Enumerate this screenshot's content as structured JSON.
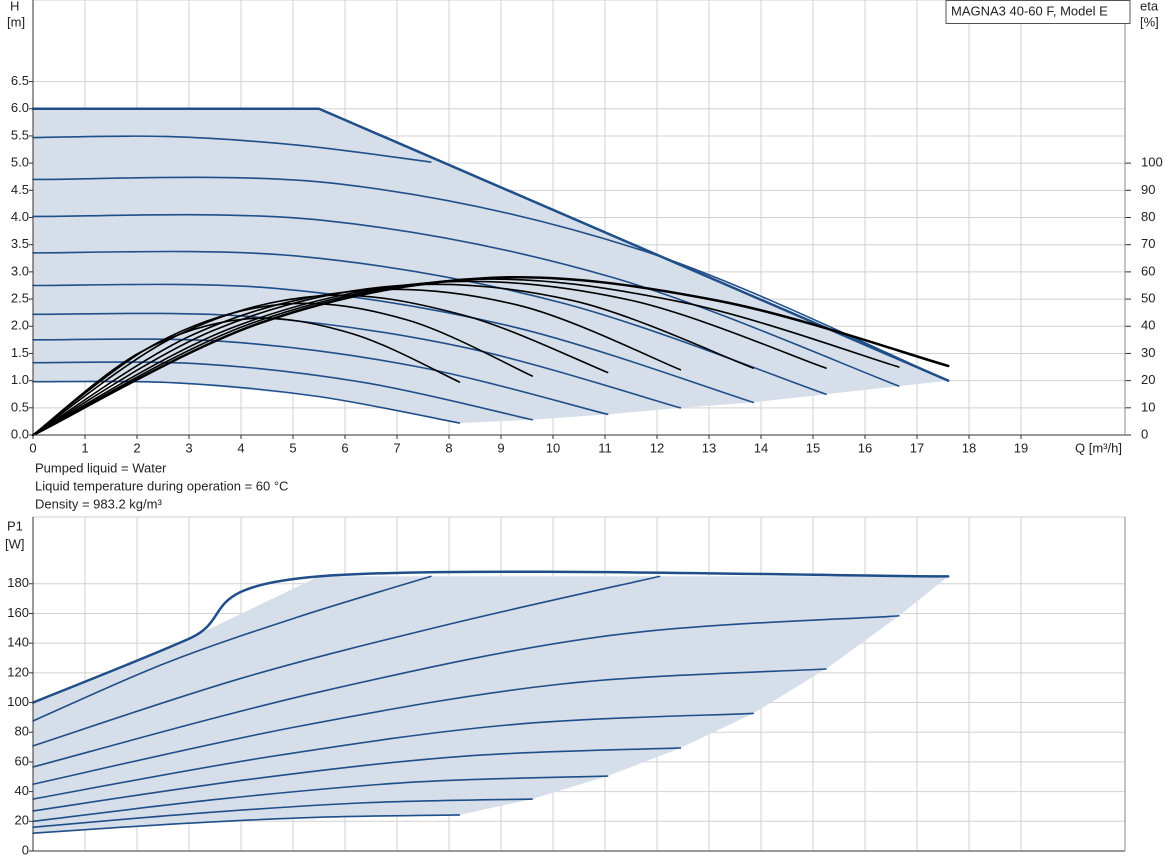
{
  "chart_data": [
    {
      "type": "line",
      "title": "MAGNA3 40-60 F, Model E",
      "ylabel": "H",
      "yunit": "[m]",
      "y2label": "eta",
      "y2unit": "[%]",
      "xlabel": "Q [m³/h]",
      "xlim": [
        0,
        21
      ],
      "xticks": [
        0,
        1,
        2,
        3,
        4,
        5,
        6,
        7,
        8,
        9,
        10,
        11,
        12,
        13,
        14,
        15,
        16,
        17,
        18,
        19
      ],
      "ylim": [
        0,
        8
      ],
      "yticks": [
        {
          "value": 0,
          "label": "0.0"
        },
        0.5,
        {
          "value": 1,
          "label": "1.0"
        },
        1.5,
        {
          "value": 2,
          "label": "2.0"
        },
        2.5,
        {
          "value": 3,
          "label": "3.0"
        },
        3.5,
        {
          "value": 4,
          "label": "4.0"
        },
        4.5,
        {
          "value": 5,
          "label": "5.0"
        },
        5.5,
        {
          "value": 6,
          "label": "6.0"
        },
        6.5
      ],
      "y2lim": [
        0,
        160
      ],
      "y2ticks": [
        0,
        10,
        20,
        30,
        40,
        50,
        60,
        70,
        80,
        90,
        100
      ],
      "grid": true,
      "area_color": "#d5dee9",
      "series": [
        {
          "color": "#1f4e89",
          "line_width": 2.5,
          "x": [
            0,
            5.5,
            17.6
          ],
          "values": [
            6.0,
            6.0,
            1.0
          ]
        },
        {
          "color": "#1f4e89",
          "x": [
            0,
            2.55,
            5.1,
            7.65
          ],
          "values": [
            5.47,
            5.49,
            5.33,
            5.02
          ]
        },
        {
          "color": "#1f4e89",
          "x": [
            0,
            5.87,
            11.73,
            17.6
          ],
          "values": [
            4.7,
            4.62,
            3.39,
            1.0
          ]
        },
        {
          "color": "#1f4e89",
          "x": [
            0,
            5.55,
            11.1,
            16.65
          ],
          "values": [
            4.02,
            3.95,
            2.91,
            0.9
          ]
        },
        {
          "color": "#1f4e89",
          "x": [
            0,
            5.08,
            10.17,
            15.25
          ],
          "values": [
            3.35,
            3.29,
            2.43,
            0.75
          ]
        },
        {
          "color": "#1f4e89",
          "x": [
            0,
            4.62,
            9.23,
            13.85
          ],
          "values": [
            2.75,
            2.7,
            1.99,
            0.6
          ]
        },
        {
          "color": "#1f4e89",
          "x": [
            0,
            4.15,
            8.3,
            12.45
          ],
          "values": [
            2.22,
            2.18,
            1.61,
            0.5
          ]
        },
        {
          "color": "#1f4e89",
          "x": [
            0,
            3.68,
            7.37,
            11.05
          ],
          "values": [
            1.75,
            1.72,
            1.26,
            0.38
          ]
        },
        {
          "color": "#1f4e89",
          "x": [
            0,
            3.2,
            6.4,
            9.6
          ],
          "values": [
            1.33,
            1.31,
            0.96,
            0.28
          ]
        },
        {
          "color": "#1f4e89",
          "x": [
            0,
            2.73,
            5.47,
            8.2
          ],
          "values": [
            0.98,
            0.96,
            0.71,
            0.22
          ]
        },
        {
          "color": "#000000",
          "axis": "y2",
          "x": [
            0,
            2.05,
            4.1,
            6.15,
            8.2
          ],
          "values": [
            0,
            30.3,
            42.7,
            37.2,
            19.5
          ]
        },
        {
          "color": "#000000",
          "axis": "y2",
          "x": [
            0,
            2.4,
            4.8,
            7.2,
            9.6
          ],
          "values": [
            0,
            34,
            48.1,
            42.3,
            21.7
          ]
        },
        {
          "color": "#000000",
          "axis": "y2",
          "x": [
            0,
            2.76,
            5.53,
            8.29,
            11.05
          ],
          "values": [
            0,
            36.5,
            51.2,
            44,
            23
          ]
        },
        {
          "color": "#000000",
          "axis": "y2",
          "x": [
            0,
            3.11,
            6.23,
            9.34,
            12.45
          ],
          "values": [
            0,
            37.2,
            53,
            47.7,
            24
          ]
        },
        {
          "color": "#000000",
          "axis": "y2",
          "x": [
            0,
            3.46,
            6.93,
            10.39,
            13.85
          ],
          "values": [
            0,
            38.4,
            54.8,
            49.4,
            24.6
          ]
        },
        {
          "color": "#000000",
          "axis": "y2",
          "x": [
            0,
            3.81,
            7.63,
            11.44,
            15.25
          ],
          "values": [
            0,
            39.3,
            56,
            49.8,
            24.6
          ]
        },
        {
          "color": "#000000",
          "axis": "y2",
          "x": [
            0,
            4.16,
            8.33,
            12.49,
            16.65
          ],
          "values": [
            0,
            40.8,
            57.1,
            48.8,
            25
          ]
        },
        {
          "color": "#000000",
          "axis": "y2",
          "line_width": 2.5,
          "x": [
            0,
            4.4,
            8.8,
            13.2,
            17.6
          ],
          "values": [
            0,
            41.4,
            57.8,
            49.3,
            25.4
          ]
        }
      ]
    },
    {
      "type": "line",
      "ylabel": "P1",
      "yunit": "[W]",
      "ylim": [
        0,
        225
      ],
      "yticks": [
        0,
        20,
        40,
        60,
        80,
        100,
        120,
        140,
        160,
        180
      ],
      "grid": true,
      "area_color": "#d5dee9",
      "series": [
        {
          "color": "#1f4e89",
          "line_width": 2.5,
          "x": [
            0,
            3,
            5.5,
            17.6
          ],
          "values": [
            100,
            143,
            185,
            185
          ]
        },
        {
          "color": "#1f4e89",
          "x": [
            0,
            2.55,
            5.1,
            7.65
          ],
          "values": [
            87.6,
            126.6,
            157.7,
            185
          ]
        },
        {
          "color": "#1f4e89",
          "x": [
            0,
            4.02,
            8.03,
            12.05
          ],
          "values": [
            70.8,
            116.5,
            153,
            185
          ]
        },
        {
          "color": "#1f4e89",
          "x": [
            0,
            5.55,
            11.1,
            16.65
          ],
          "values": [
            56.6,
            107.5,
            145.2,
            158.4
          ]
        },
        {
          "color": "#1f4e89",
          "x": [
            0,
            5.08,
            10.17,
            15.25
          ],
          "values": [
            45,
            83.8,
            112.5,
            122.6
          ]
        },
        {
          "color": "#1f4e89",
          "x": [
            0,
            4.62,
            9.23,
            13.85
          ],
          "values": [
            35,
            63.9,
            85.2,
            92.7
          ]
        },
        {
          "color": "#1f4e89",
          "x": [
            0,
            4.15,
            8.3,
            12.45
          ],
          "values": [
            27,
            48.2,
            63.9,
            69.4
          ]
        },
        {
          "color": "#1f4e89",
          "x": [
            0,
            3.68,
            7.37,
            11.05
          ],
          "values": [
            20,
            35.3,
            46.5,
            50.5
          ]
        },
        {
          "color": "#1f4e89",
          "x": [
            0,
            3.2,
            6.4,
            9.6
          ],
          "values": [
            16,
            25.5,
            32.5,
            35
          ]
        },
        {
          "color": "#1f4e89",
          "x": [
            0,
            2.73,
            5.47,
            8.2
          ],
          "values": [
            12,
            18.2,
            22.7,
            24.3
          ]
        }
      ]
    }
  ],
  "notes": [
    "Pumped liquid = Water",
    "Liquid temperature during operation = 60 °C",
    "Density = 983.2 kg/m³"
  ]
}
